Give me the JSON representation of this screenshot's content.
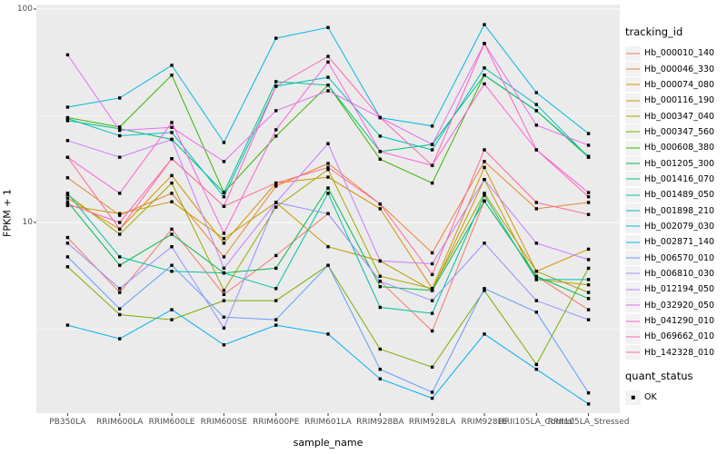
{
  "figure": {
    "y_axis_title": "FPKM + 1",
    "x_axis_title": "sample_name",
    "legend_tracking_title": "tracking_id",
    "legend_quant_title": "quant_status",
    "quant_status_label": "OK"
  },
  "colors": {
    "panel_bg": "#EBEBEB",
    "grid": "#FFFFFF",
    "point": "#000000",
    "tick": "#333333",
    "axis_text": "#4D4D4D",
    "legend_key_bg": "#F2F2F2"
  },
  "chart_data": {
    "type": "line",
    "title": "",
    "xlabel": "sample_name",
    "ylabel": "FPKM + 1",
    "x_scale": "categorical",
    "y_scale": "log10",
    "ylim": [
      1.25,
      105
    ],
    "grid": "on",
    "legend_position": "right",
    "point_shape": "filled-black-square",
    "quant_status": "OK",
    "categories": [
      "PB350LA",
      "RRIM600LA",
      "RRIM600LE",
      "RRIM600SE",
      "RRIM600PE",
      "RRIM601LA",
      "RRIM928BA",
      "RRIM928LA",
      "RRIM928LE",
      "RRII105LA_Control",
      "RRII105LA_Stressed"
    ],
    "y_ticks": [
      {
        "value": 100,
        "label": "100"
      },
      {
        "value": 10,
        "label": "10"
      }
    ],
    "y_minor": [
      31.623,
      3.1623
    ],
    "series": [
      {
        "name": "Hb_000010_140",
        "color": "#F8766D",
        "values": [
          8.5,
          4.7,
          9.3,
          4.6,
          7.0,
          11.0,
          5.3,
          3.1,
          12.6,
          5.6,
          3.9
        ]
      },
      {
        "name": "Hb_000046_330",
        "color": "#EA8331",
        "values": [
          16.2,
          10.8,
          13.7,
          6.9,
          14.8,
          18.9,
          12.2,
          7.2,
          19.3,
          11.6,
          12.4
        ]
      },
      {
        "name": "Hb_000074_080",
        "color": "#D89000",
        "values": [
          13.0,
          9.3,
          16.6,
          8.0,
          15.3,
          16.3,
          11.6,
          4.9,
          18.1,
          5.9,
          7.5
        ]
      },
      {
        "name": "Hb_000116_190",
        "color": "#C09B00",
        "values": [
          12.0,
          11.0,
          12.5,
          8.4,
          12.4,
          7.7,
          6.6,
          4.8,
          15.9,
          5.4,
          5.1
        ]
      },
      {
        "name": "Hb_000347_040",
        "color": "#A3A500",
        "values": [
          13.5,
          8.8,
          15.3,
          4.8,
          11.8,
          17.7,
          5.6,
          4.9,
          13.7,
          5.9,
          4.7
        ]
      },
      {
        "name": "Hb_000347_560",
        "color": "#7CAE00",
        "values": [
          6.2,
          3.7,
          3.5,
          4.3,
          4.3,
          6.3,
          2.55,
          2.1,
          4.8,
          2.16,
          6.1
        ]
      },
      {
        "name": "Hb_000608_380",
        "color": "#39B600",
        "values": [
          31,
          28,
          49,
          13.8,
          25.4,
          44,
          19.8,
          15.3,
          49,
          33.4,
          20.2
        ]
      },
      {
        "name": "Hb_001205_300",
        "color": "#00BB4E",
        "values": [
          12.5,
          6.3,
          8.8,
          5.8,
          6.1,
          14.5,
          5.0,
          4.8,
          12.6,
          5.6,
          4.4
        ]
      },
      {
        "name": "Hb_001416_070",
        "color": "#00BF7D",
        "values": [
          30,
          27.5,
          24.5,
          13.8,
          45.7,
          44,
          21.5,
          23.2,
          49,
          33.4,
          20.4
        ]
      },
      {
        "name": "Hb_001489_050",
        "color": "#00C1A3",
        "values": [
          13.7,
          6.9,
          5.9,
          5.8,
          4.9,
          13.7,
          4.0,
          3.75,
          13.4,
          5.4,
          5.4
        ]
      },
      {
        "name": "Hb_001898_210",
        "color": "#00BFC4",
        "values": [
          30.7,
          25.5,
          26.4,
          13.2,
          43.5,
          47.9,
          25.4,
          21.9,
          53,
          35.7,
          20.2
        ]
      },
      {
        "name": "Hb_002079_030",
        "color": "#00BAE0",
        "values": [
          34.7,
          38.3,
          54.5,
          23.7,
          73,
          82,
          31,
          28.3,
          84.6,
          40.6,
          26.1
        ]
      },
      {
        "name": "Hb_002871_140",
        "color": "#00B0F6",
        "values": [
          3.3,
          2.85,
          3.9,
          2.67,
          3.3,
          3.0,
          1.85,
          1.5,
          3.0,
          2.05,
          1.41
        ]
      },
      {
        "name": "Hb_006570_010",
        "color": "#619CFF",
        "values": [
          6.9,
          3.94,
          6.3,
          3.6,
          3.5,
          6.3,
          2.05,
          1.6,
          4.9,
          3.8,
          1.59
        ]
      },
      {
        "name": "Hb_006810_030",
        "color": "#9590FF",
        "values": [
          8.0,
          4.9,
          7.7,
          3.2,
          12.4,
          11.0,
          5.3,
          4.3,
          8.0,
          4.3,
          3.5
        ]
      },
      {
        "name": "Hb_012194_050",
        "color": "#C77CFF",
        "values": [
          24.2,
          20.2,
          24.5,
          6.1,
          12.4,
          23.4,
          6.6,
          6.4,
          15.9,
          8.0,
          6.7
        ]
      },
      {
        "name": "Hb_032920_050",
        "color": "#E76BF3",
        "values": [
          61,
          27,
          27.9,
          19.3,
          33.4,
          41.4,
          31,
          23.2,
          69,
          28.6,
          23.0
        ]
      },
      {
        "name": "Hb_041290_010",
        "color": "#FA62DB",
        "values": [
          20.2,
          13.7,
          29.4,
          8.9,
          27.2,
          56.5,
          21.5,
          18.5,
          44.6,
          21.9,
          13.8
        ]
      },
      {
        "name": "Hb_069662_010",
        "color": "#FF62BC",
        "values": [
          12.2,
          10.0,
          19.9,
          11.9,
          43.5,
          60,
          31,
          18.5,
          69,
          21.9,
          13.2
        ]
      },
      {
        "name": "Hb_142328_010",
        "color": "#FF6A98",
        "values": [
          20.2,
          9.3,
          19.9,
          11.9,
          15.3,
          18.1,
          12.2,
          5.7,
          21.9,
          12.4,
          10.9
        ]
      }
    ]
  }
}
